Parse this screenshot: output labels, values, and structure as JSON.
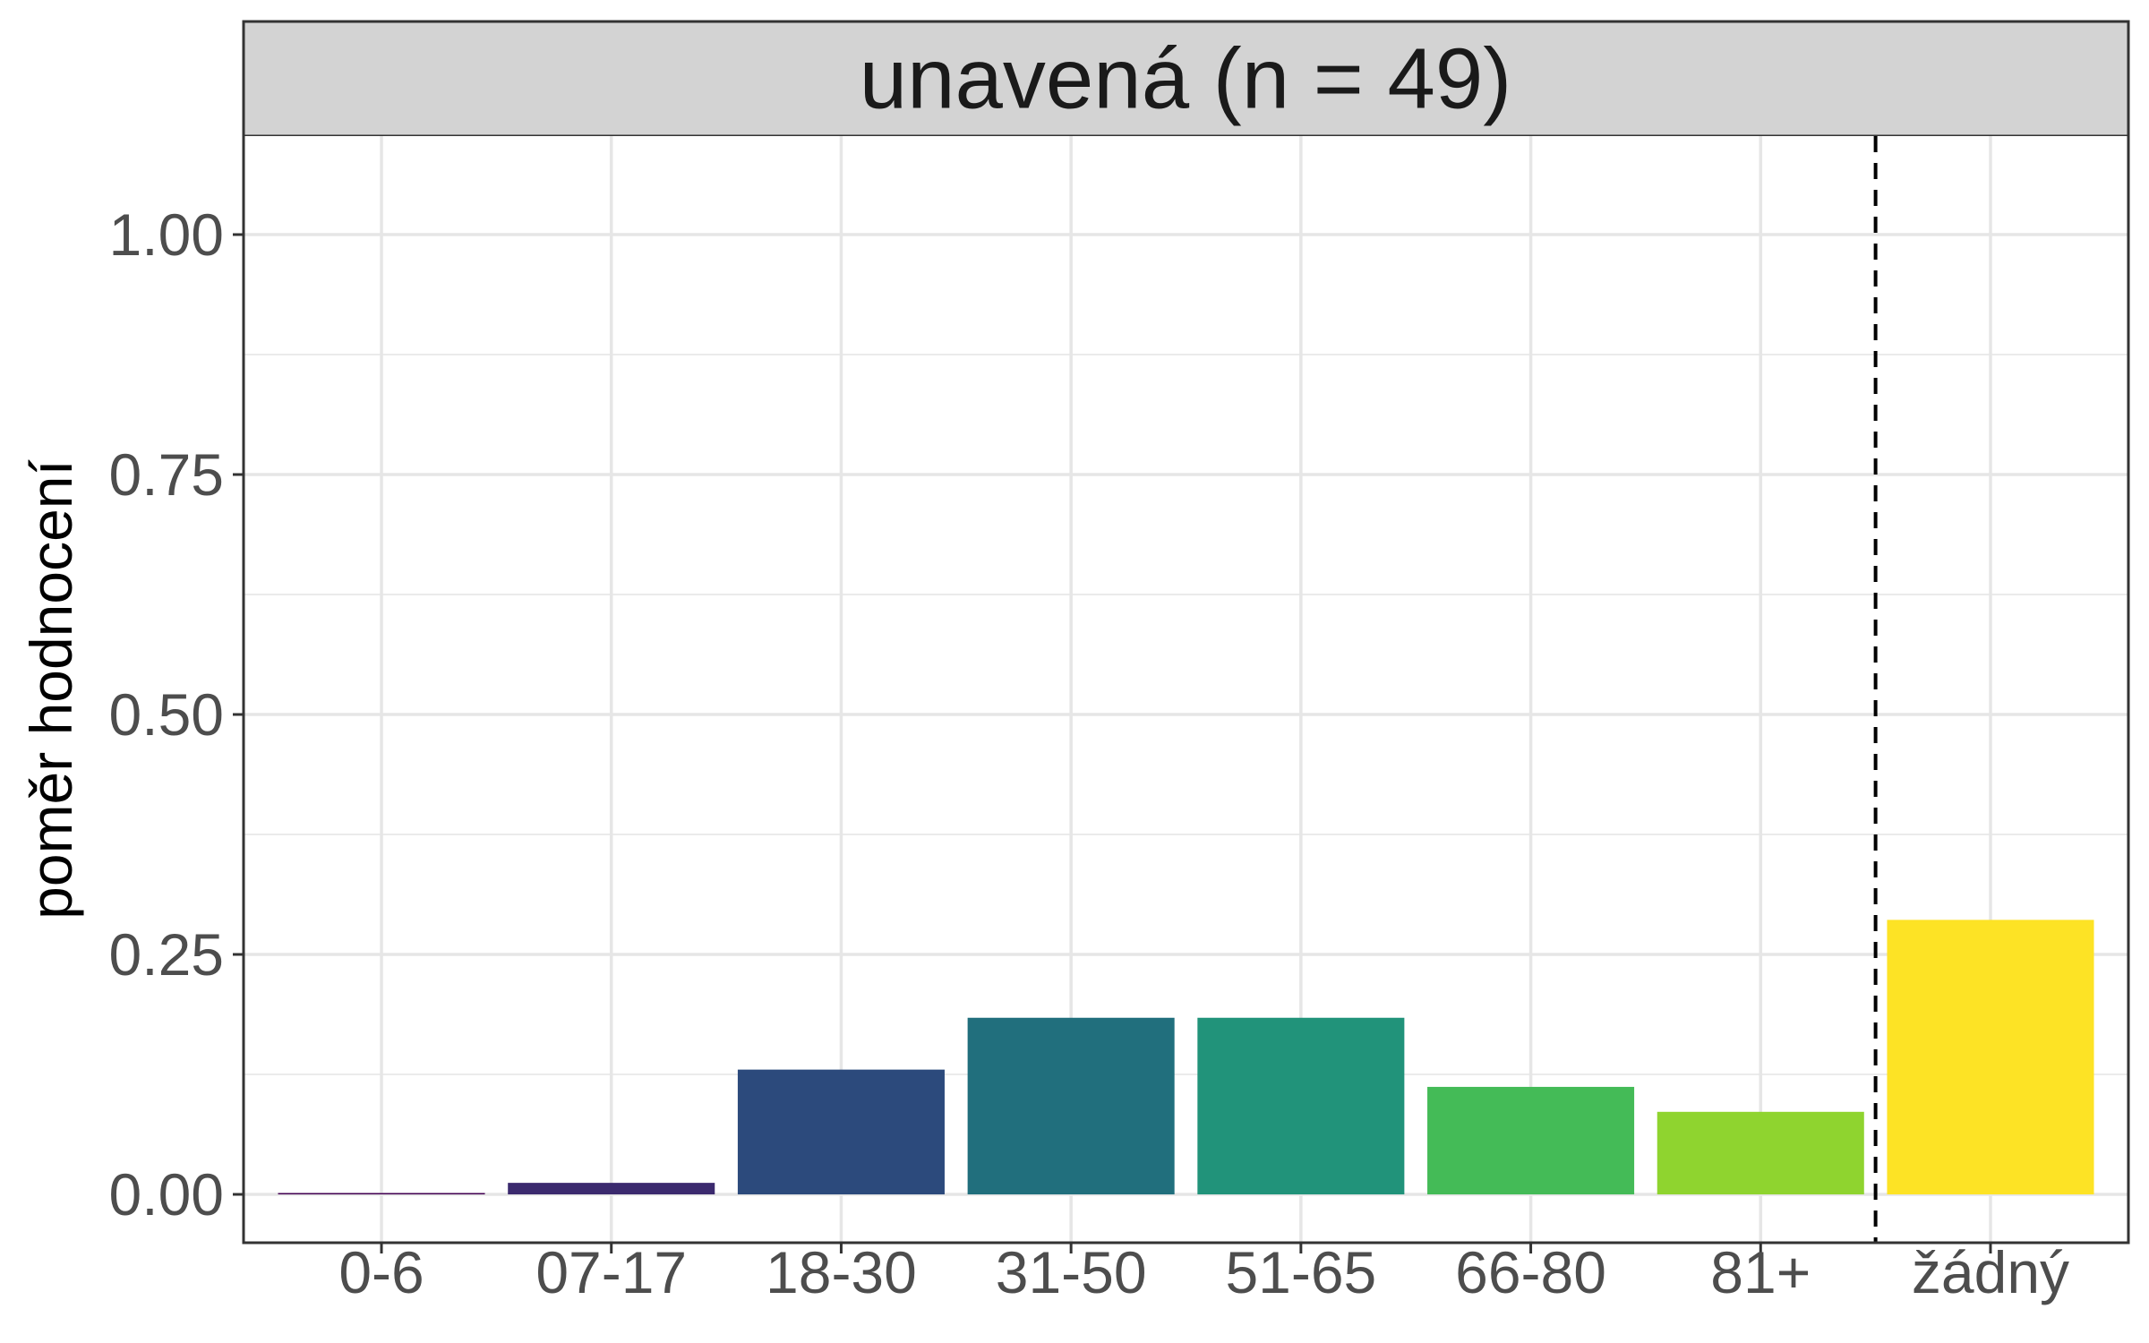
{
  "chart_data": {
    "type": "bar",
    "title": "unavená (n = 49)",
    "xlabel": "",
    "ylabel": "poměr hodnocení",
    "ylim": [
      0,
      1.1
    ],
    "y_ticks": [
      0,
      0.25,
      0.5,
      0.75,
      1.0
    ],
    "y_tick_labels": [
      "0.00",
      "0.25",
      "0.50",
      "0.75",
      "1.00"
    ],
    "categories": [
      "0-6",
      "07-17",
      "18-30",
      "31-50",
      "51-65",
      "66-80",
      "81+",
      "žádný"
    ],
    "values": [
      0.0,
      0.012,
      0.13,
      0.184,
      0.184,
      0.112,
      0.086,
      0.286
    ],
    "colors": [
      "#440154",
      "#3b2a6e",
      "#2c4a7c",
      "#216f7d",
      "#21937a",
      "#44bb57",
      "#8fd42f",
      "#fde325"
    ],
    "reference_line": {
      "between": [
        "81+",
        "žádný"
      ],
      "style": "dashed"
    },
    "grid": true,
    "legend": "none",
    "facet_strip_color": "#d3d3d3"
  }
}
